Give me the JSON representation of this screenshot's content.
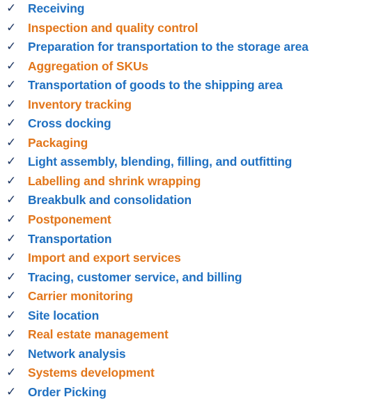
{
  "colors": {
    "check": "#1f3864",
    "blue": "#1f70c1",
    "orange": "#e2761b"
  },
  "check_icon": "check-icon",
  "items": [
    {
      "label": "Receiving",
      "color": "blue"
    },
    {
      "label": "Inspection and quality control",
      "color": "orange"
    },
    {
      "label": "Preparation for transportation to the storage area",
      "color": "blue"
    },
    {
      "label": "Aggregation of SKUs",
      "color": "orange"
    },
    {
      "label": "Transportation of goods to the shipping area",
      "color": "blue"
    },
    {
      "label": "Inventory tracking",
      "color": "orange"
    },
    {
      "label": "Cross docking",
      "color": "blue"
    },
    {
      "label": "Packaging",
      "color": "orange"
    },
    {
      "label": "Light assembly, blending, filling, and outfitting",
      "color": "blue"
    },
    {
      "label": "Labelling and shrink wrapping",
      "color": "orange"
    },
    {
      "label": "Breakbulk and consolidation",
      "color": "blue"
    },
    {
      "label": "Postponement",
      "color": "orange"
    },
    {
      "label": "Transportation",
      "color": "blue"
    },
    {
      "label": "Import and export services",
      "color": "orange"
    },
    {
      "label": "Tracing, customer service, and billing",
      "color": "blue"
    },
    {
      "label": "Carrier monitoring",
      "color": "orange"
    },
    {
      "label": "Site location",
      "color": "blue"
    },
    {
      "label": "Real estate management",
      "color": "orange"
    },
    {
      "label": "Network analysis",
      "color": "blue"
    },
    {
      "label": "Systems development",
      "color": "orange"
    },
    {
      "label": "Order Picking",
      "color": "blue"
    }
  ]
}
